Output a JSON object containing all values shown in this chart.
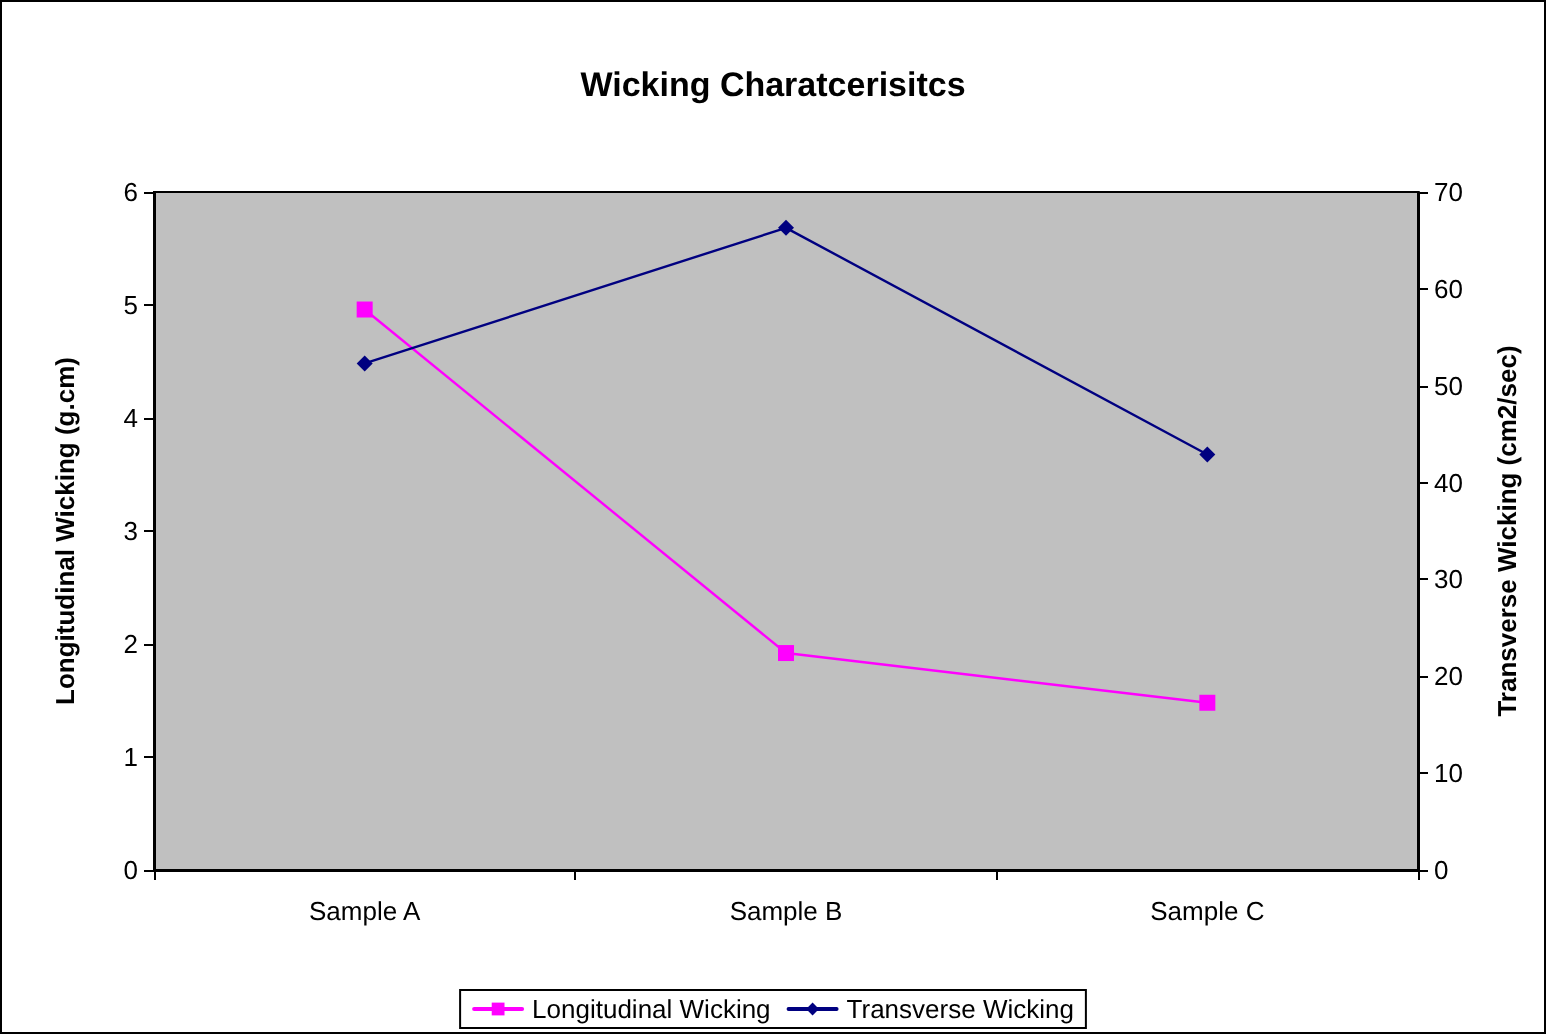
{
  "chart_data": {
    "type": "line",
    "title": "Wicking Charatcerisitcs",
    "categories": [
      "Sample A",
      "Sample B",
      "Sample C"
    ],
    "ylabel": "Longitudinal Wicking (g.cm)",
    "y2label": "Transverse Wicking (cm2/sec)",
    "ylim": [
      0,
      6
    ],
    "yticks": [
      0,
      1,
      2,
      3,
      4,
      5,
      6
    ],
    "y2lim": [
      0,
      70
    ],
    "y2ticks": [
      0,
      10,
      20,
      30,
      40,
      50,
      60,
      70
    ],
    "series": [
      {
        "name": "Longitudinal Wicking",
        "color": "#ff00ff",
        "marker": "square",
        "values": [
          4.96,
          1.92,
          1.48
        ]
      },
      {
        "name": "Transverse Wicking",
        "color": "#000080",
        "marker": "diamond",
        "axis": "y2",
        "values": [
          52.3,
          66.3,
          42.9
        ]
      }
    ],
    "grid": false,
    "legend": "bottom",
    "line_style": "solid"
  }
}
